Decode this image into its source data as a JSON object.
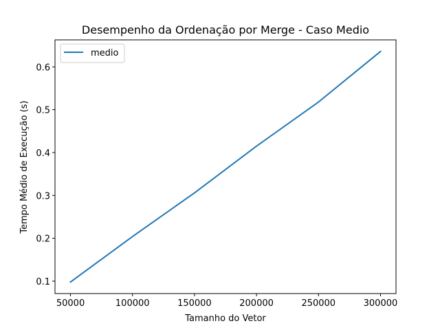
{
  "chart_data": {
    "type": "line",
    "title": "Desempenho da Ordenação por Merge - Caso Medio",
    "xlabel": "Tamanho do Vetor",
    "ylabel": "Tempo Médio de Execução (s)",
    "x": [
      50000,
      100000,
      150000,
      200000,
      250000,
      300000
    ],
    "series": [
      {
        "name": "medio",
        "color": "#1f77b4",
        "values": [
          0.098,
          0.204,
          0.306,
          0.415,
          0.518,
          0.636
        ]
      }
    ],
    "xlim": [
      37500,
      312500
    ],
    "ylim": [
      0.071,
      0.663
    ],
    "xticks": [
      50000,
      100000,
      150000,
      200000,
      250000,
      300000
    ],
    "xtick_labels": [
      "50000",
      "100000",
      "150000",
      "200000",
      "250000",
      "300000"
    ],
    "yticks": [
      0.1,
      0.2,
      0.3,
      0.4,
      0.5,
      0.6
    ],
    "ytick_labels": [
      "0.1",
      "0.2",
      "0.3",
      "0.4",
      "0.5",
      "0.6"
    ],
    "grid": false,
    "legend_position": "top-left"
  }
}
